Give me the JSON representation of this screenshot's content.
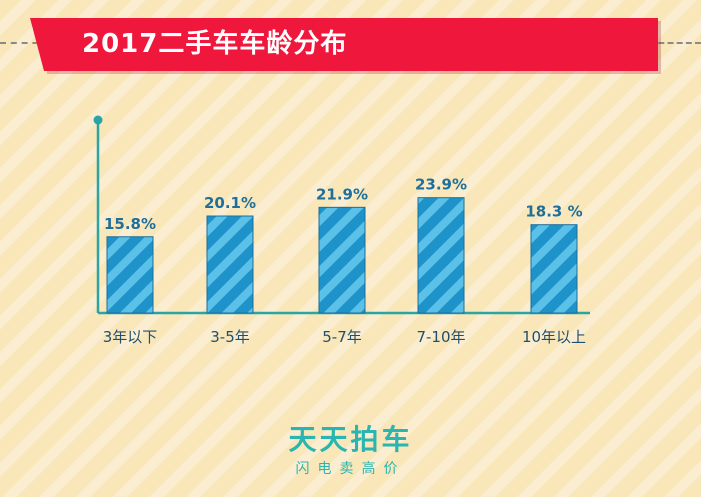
{
  "header": {
    "title": "2017二手车车龄分布"
  },
  "chart_data": {
    "type": "bar",
    "title": "2017二手车车龄分布",
    "xlabel": "",
    "ylabel": "",
    "categories": [
      "3年以下",
      "3-5年",
      "5-7年",
      "7-10年",
      "10年以上"
    ],
    "values": [
      15.8,
      20.1,
      21.9,
      23.9,
      18.3
    ],
    "value_labels": [
      "15.8%",
      "20.1%",
      "21.9%",
      "23.9%",
      "18.3 %"
    ],
    "ylim": [
      0,
      40
    ],
    "grid": false,
    "legend": "none"
  },
  "brand": {
    "name": "天天拍车",
    "slogan": "闪电卖高价"
  },
  "colors": {
    "banner": "#f0173d",
    "bar": "#1e93c9",
    "bar_stripe": "#5cc1e8",
    "bar_border": "#1a6f9c",
    "axis": "#2aa5a3",
    "brand": "#2bb5b0"
  }
}
